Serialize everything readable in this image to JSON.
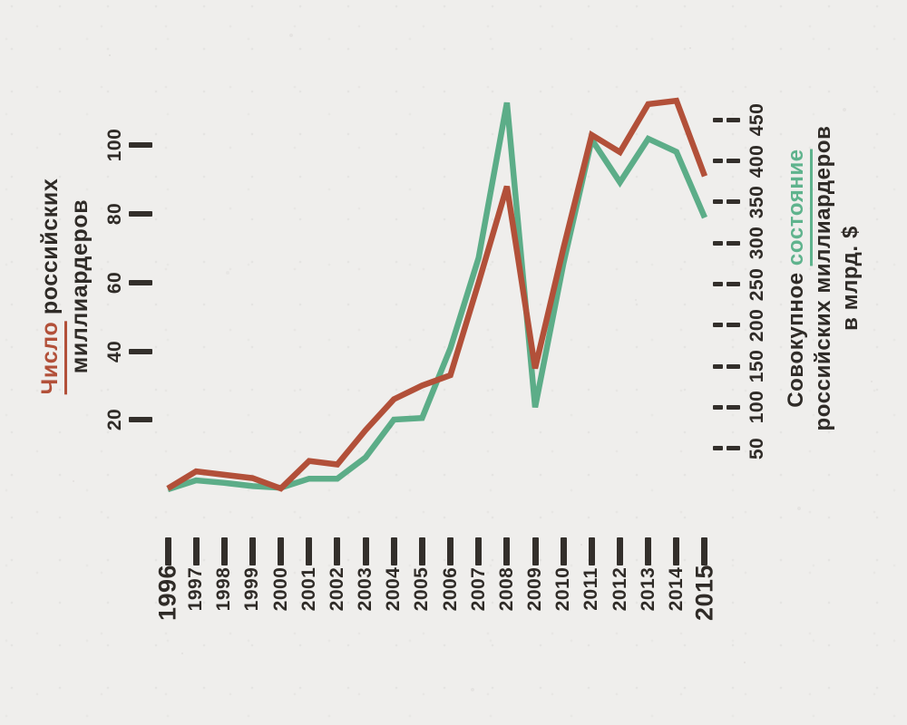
{
  "meta": {
    "background": "#efeeec",
    "ink": "#2f2b27",
    "accent_red": "#b25039",
    "accent_green": "#5fb38d"
  },
  "left_axis": {
    "title": {
      "accent": "Число",
      "line1_rest": " российских",
      "line2": "миллиардеров"
    },
    "ticks": [
      20,
      40,
      60,
      80,
      100
    ]
  },
  "right_axis": {
    "title": {
      "line1_pre": "Совокупное ",
      "accent": "состояние",
      "line2": "российских миллиардеров",
      "line3": "в млрд. $"
    },
    "ticks": [
      50,
      100,
      150,
      200,
      250,
      300,
      350,
      400,
      450
    ]
  },
  "x_axis": {
    "years": [
      "1996",
      "1997",
      "1998",
      "1999",
      "2000",
      "2001",
      "2002",
      "2003",
      "2004",
      "2005",
      "2006",
      "2007",
      "2008",
      "2009",
      "2010",
      "2011",
      "2012",
      "2013",
      "2014",
      "2015"
    ],
    "emphasized": [
      "1996",
      "2015"
    ]
  },
  "chart_data": {
    "type": "line",
    "x": [
      1996,
      1997,
      1998,
      1999,
      2000,
      2001,
      2002,
      2003,
      2004,
      2005,
      2006,
      2007,
      2008,
      2009,
      2010,
      2011,
      2012,
      2013,
      2014,
      2015
    ],
    "series": [
      {
        "id": "wealth",
        "name": "Совокупное состояние российских миллиардеров в млрд. $",
        "axis": "right",
        "color": "#5cad88",
        "values": [
          0,
          11,
          8,
          4,
          2,
          13,
          13,
          39,
          85,
          87,
          172,
          282,
          471,
          100,
          275,
          426,
          374,
          427,
          411,
          331
        ]
      },
      {
        "id": "count",
        "name": "Число российских миллиардеров",
        "axis": "left",
        "color": "#b25039",
        "values": [
          0,
          5,
          4,
          3,
          0,
          8,
          7,
          17,
          26,
          30,
          33,
          60,
          88,
          35,
          70,
          103,
          98,
          112,
          113,
          91
        ]
      }
    ],
    "left_ylim": [
      0,
      110
    ],
    "right_ylim": [
      0,
      480
    ],
    "grid": false,
    "legend_position": "axis-titles",
    "title": ""
  }
}
